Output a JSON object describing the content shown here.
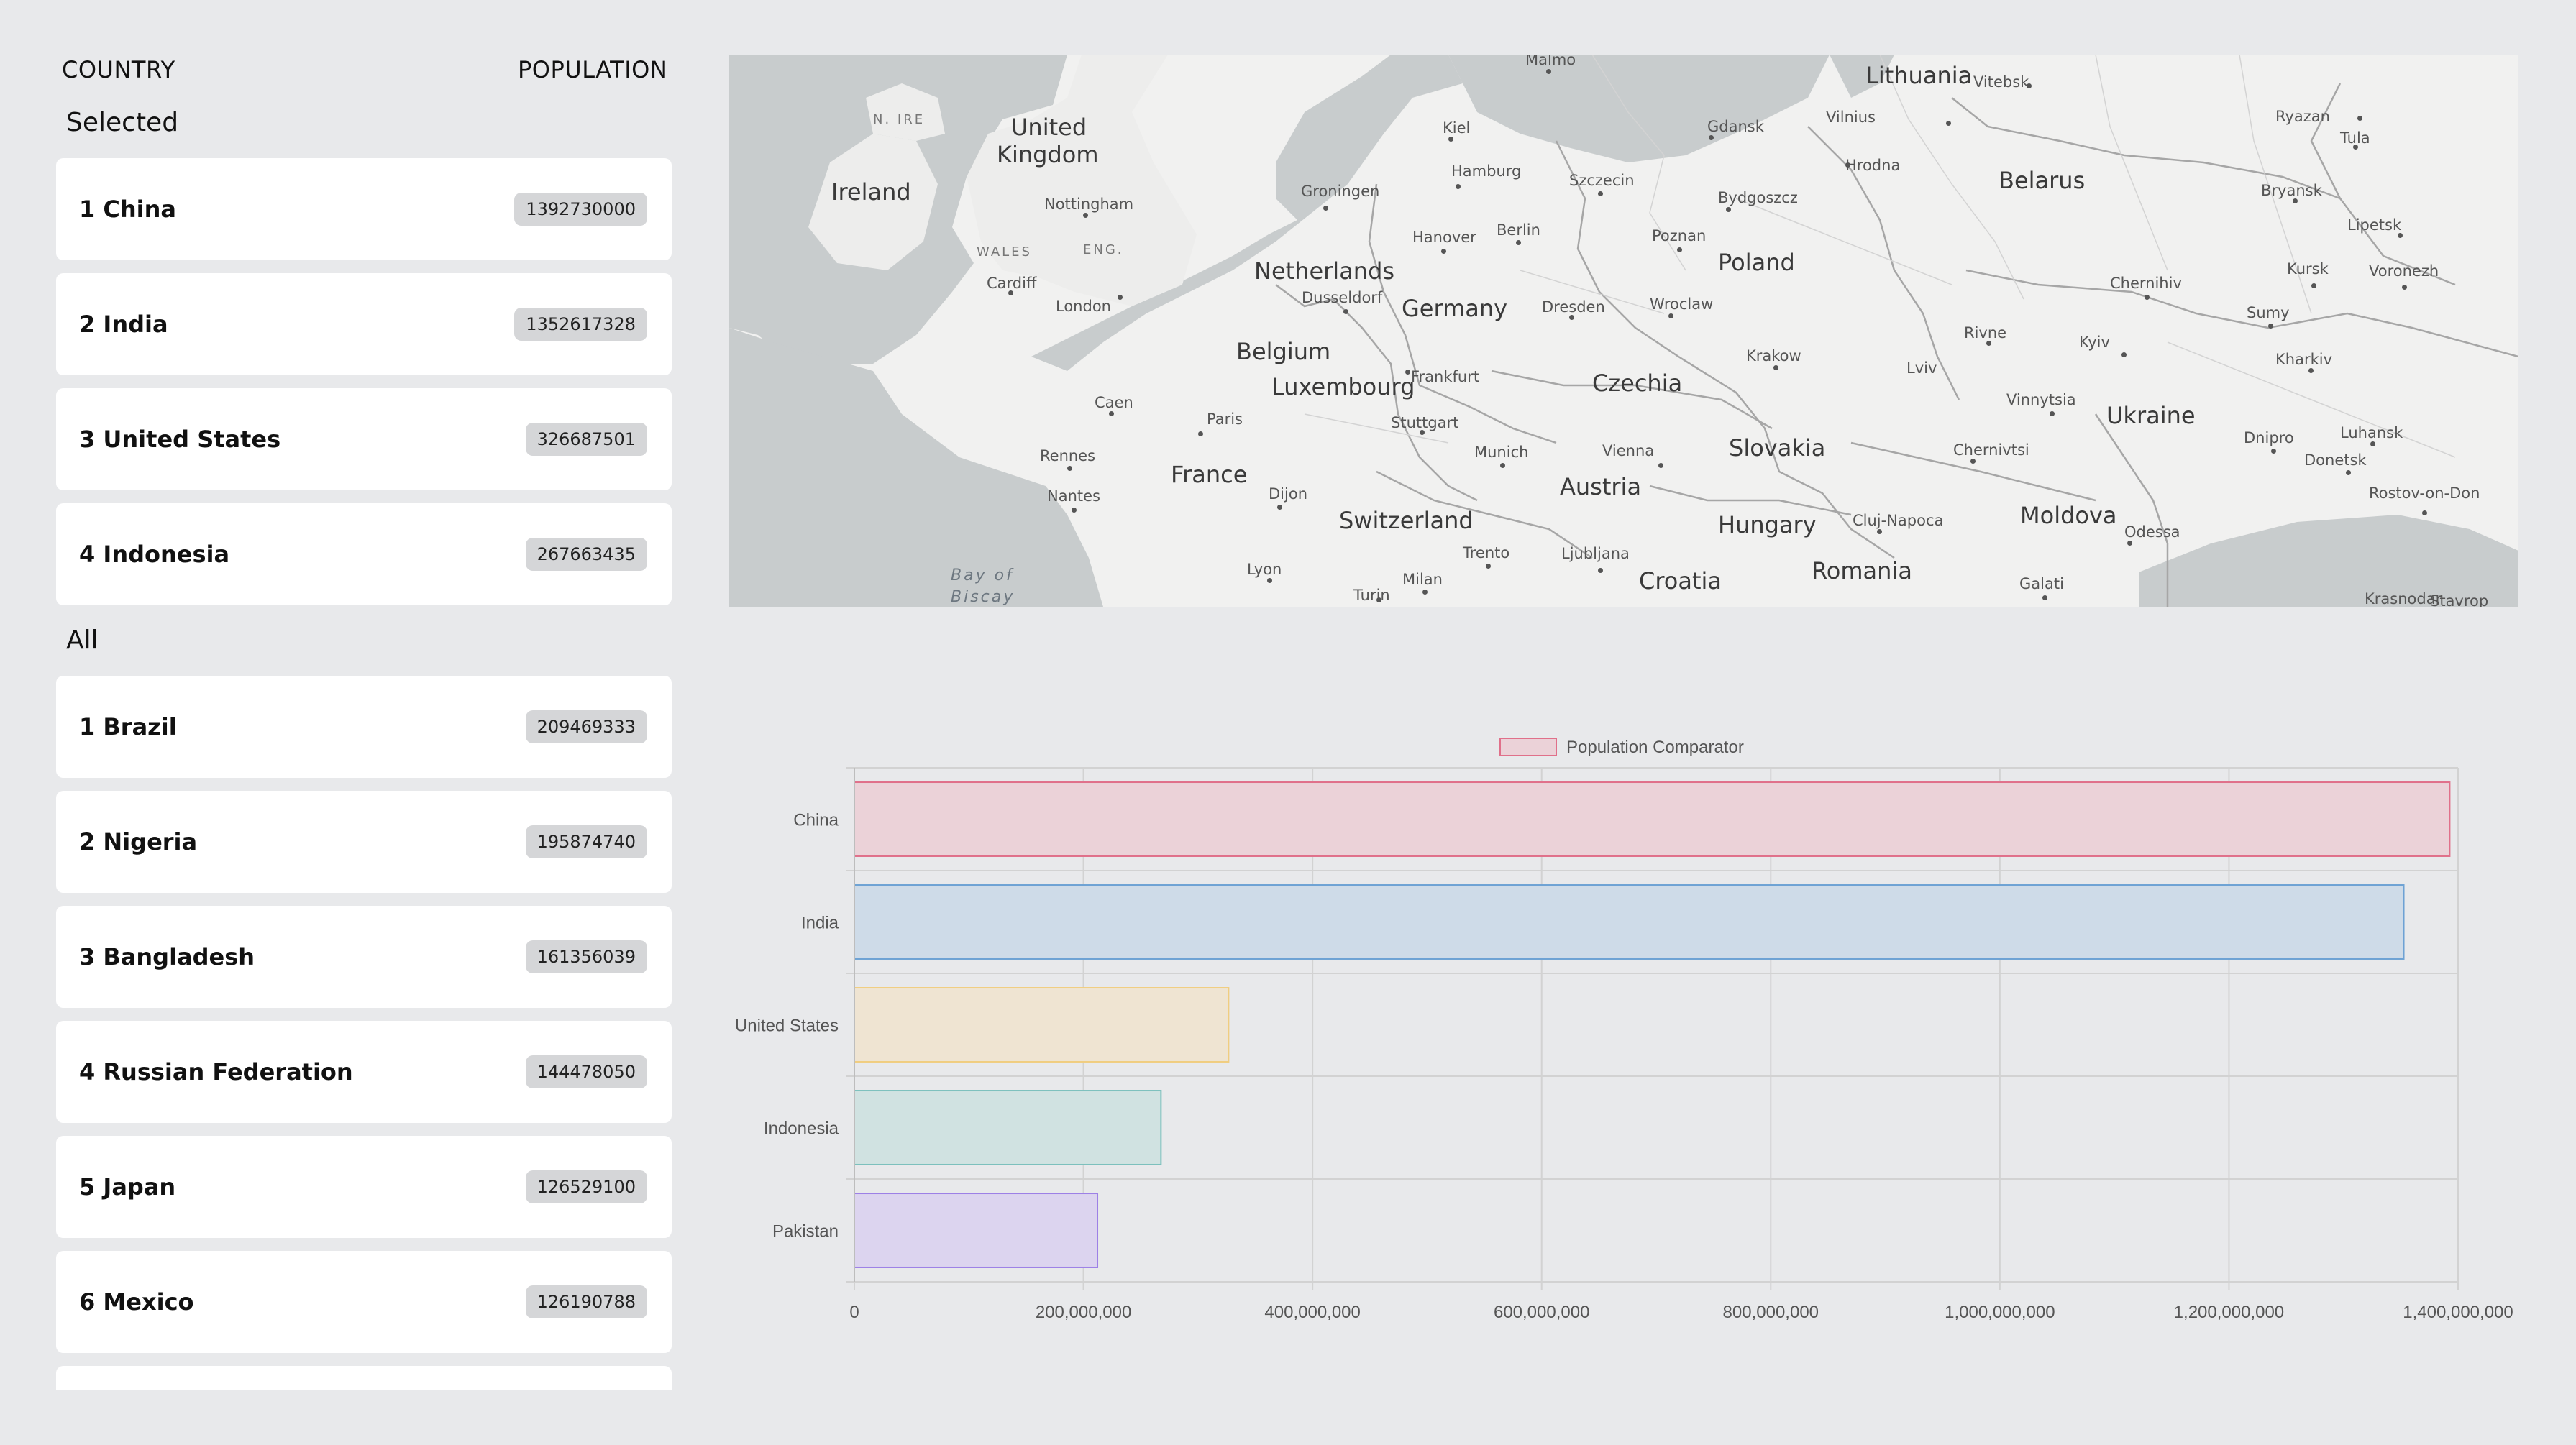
{
  "list": {
    "header_country": "COUNTRY",
    "header_population": "POPULATION",
    "selected_title": "Selected",
    "selected": [
      {
        "label": "1 China",
        "population": "1392730000"
      },
      {
        "label": "2 India",
        "population": "1352617328"
      },
      {
        "label": "3 United States",
        "population": "326687501"
      },
      {
        "label": "4 Indonesia",
        "population": "267663435"
      }
    ],
    "all_title": "All",
    "all": [
      {
        "label": "1 Brazil",
        "population": "209469333"
      },
      {
        "label": "2 Nigeria",
        "population": "195874740"
      },
      {
        "label": "3 Bangladesh",
        "population": "161356039"
      },
      {
        "label": "4 Russian Federation",
        "population": "144478050"
      },
      {
        "label": "5 Japan",
        "population": "126529100"
      },
      {
        "label": "6 Mexico",
        "population": "126190788"
      }
    ]
  },
  "map": {
    "countries": [
      "United Kingdom",
      "Ireland",
      "Netherlands",
      "Germany",
      "Belgium",
      "Luxembourg",
      "France",
      "Switzerland",
      "Austria",
      "Czechia",
      "Poland",
      "Slovakia",
      "Hungary",
      "Croatia",
      "Romania",
      "Moldova",
      "Ukraine",
      "Belarus",
      "Lithuania"
    ],
    "cities": [
      "Malmo",
      "Kiel",
      "Hamburg",
      "Gdansk",
      "Vilnius",
      "Vitebsk",
      "Ryazan",
      "Tula",
      "Hrodna",
      "Groningen",
      "Szczecin",
      "Bydgoszcz",
      "Bryansk",
      "Lipetsk",
      "Nottingham",
      "Hanover",
      "Berlin",
      "Poznan",
      "Voronezh",
      "Kursk",
      "Cardiff",
      "London",
      "Dusseldorf",
      "Dresden",
      "Wroclaw",
      "Chernihiv",
      "Sumy",
      "Kyiv",
      "Kharkiv",
      "Frankfurt",
      "Krakow",
      "Rivne",
      "Lviv",
      "Vinnytsia",
      "Caen",
      "Paris",
      "Stuttgart",
      "Vienna",
      "Dnipro",
      "Luhansk",
      "Donetsk",
      "Rennes",
      "Munich",
      "Chernivtsi",
      "Rostov-on-Don",
      "Dijon",
      "Nantes",
      "Cluj-Napoca",
      "Odessa",
      "Trento",
      "Ljubljana",
      "Lyon",
      "Milan",
      "Turin",
      "Galati",
      "Krasnodar",
      "Stavrop"
    ],
    "regions": [
      "N. IRE",
      "WALES",
      "ENG."
    ],
    "sea": "Bay of Biscay"
  },
  "chart_data": {
    "type": "bar",
    "orientation": "horizontal",
    "legend": "Population Comparator",
    "legend_position": "top",
    "categories": [
      "China",
      "India",
      "United States",
      "Indonesia",
      "Pakistan"
    ],
    "values": [
      1392730000,
      1352617328,
      326687501,
      267663435,
      212215030
    ],
    "xlim": [
      0,
      1400000000
    ],
    "xticks": [
      "0",
      "200,000,000",
      "400,000,000",
      "600,000,000",
      "800,000,000",
      "1,000,000,000",
      "1,200,000,000",
      "1,400,000,000"
    ],
    "grid": true,
    "colors": {
      "fill": [
        "#ebd2d8",
        "#cedbe8",
        "#efe4d2",
        "#d0e2e1",
        "#dcd4ef"
      ],
      "stroke": [
        "#e0708a",
        "#6ea2d4",
        "#f0cd80",
        "#7cc0bd",
        "#9d80e6"
      ]
    }
  }
}
